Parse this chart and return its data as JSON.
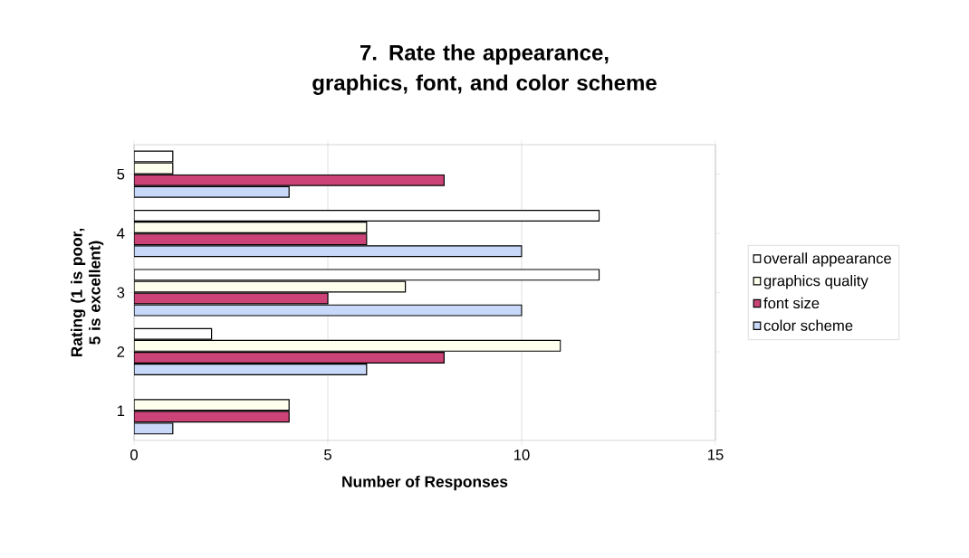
{
  "chart_data": {
    "type": "bar",
    "orientation": "horizontal",
    "title": "7.  Rate the appearance, graphics, font, and color scheme",
    "xlabel": "Number of Responses",
    "ylabel": "Rating (1 is poor, 5 is excellent)",
    "categories": [
      "5",
      "4",
      "3",
      "2",
      "1"
    ],
    "series": [
      {
        "name": "overall appearance",
        "color": "#ffffff",
        "values": [
          1,
          12,
          12,
          2,
          0
        ]
      },
      {
        "name": "graphics quality",
        "color": "#ffffee",
        "values": [
          1,
          6,
          7,
          11,
          4
        ]
      },
      {
        "name": "font size",
        "color": "#cc4477",
        "values": [
          8,
          6,
          5,
          8,
          4
        ]
      },
      {
        "name": "color scheme",
        "color": "#c8d8f8",
        "values": [
          4,
          10,
          10,
          6,
          1
        ]
      }
    ],
    "xlim": [
      0,
      15
    ],
    "xticks": [
      0,
      5,
      10,
      15
    ],
    "grid": "x",
    "legend": "right"
  }
}
